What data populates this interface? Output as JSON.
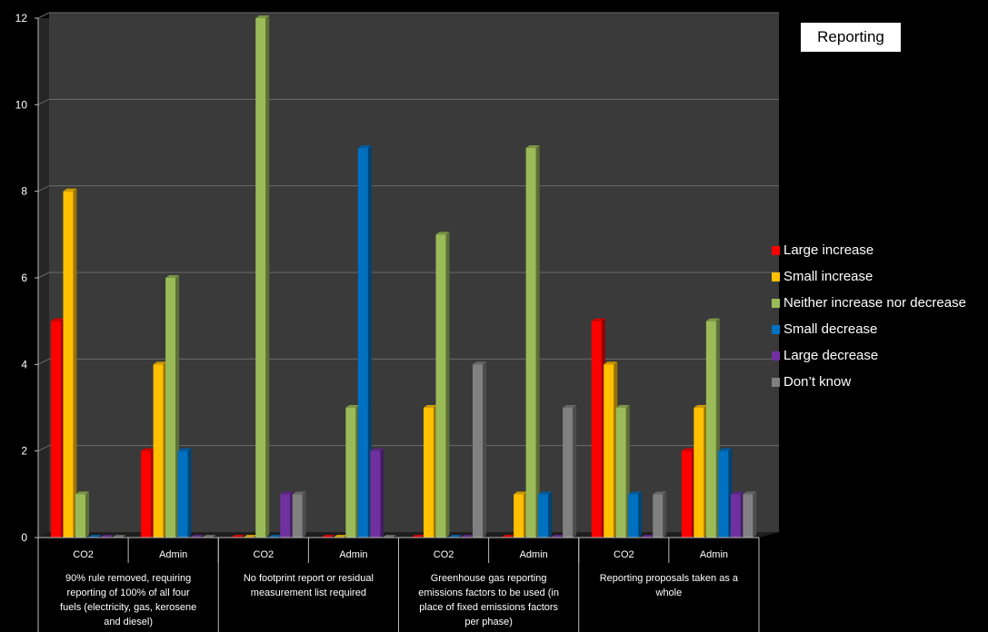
{
  "title": "Reporting",
  "chart_data": {
    "type": "bar",
    "title": "Reporting",
    "ylim": [
      0,
      12
    ],
    "yticks": [
      "0",
      "2",
      "4",
      "6",
      "8",
      "10",
      "12"
    ],
    "grid": true,
    "legend_position": "right",
    "groups": [
      {
        "label": "90% rule removed, requiring reporting of 100% of all four fuels (electricity, gas, kerosene and diesel)",
        "label_lines": [
          "90% rule removed, requiring",
          "reporting of 100% of all four",
          "fuels (electricity, gas, kerosene",
          "and diesel)"
        ],
        "categories": [
          "CO2",
          "Admin"
        ]
      },
      {
        "label": "No footprint report or residual measurement list required",
        "label_lines": [
          "No footprint report or residual",
          "measurement list required"
        ],
        "categories": [
          "CO2",
          "Admin"
        ]
      },
      {
        "label": "Greenhouse gas reporting emissions factors to be used (in place of fixed emissions factors per phase)",
        "label_lines": [
          "Greenhouse gas reporting",
          "emissions factors to be used (in",
          "place of fixed emissions factors",
          "per phase)"
        ],
        "categories": [
          "CO2",
          "Admin"
        ]
      },
      {
        "label": "Reporting proposals taken as a whole",
        "label_lines": [
          "Reporting proposals taken as a",
          "whole"
        ],
        "categories": [
          "CO2",
          "Admin"
        ]
      }
    ],
    "categories": [
      "CO2",
      "Admin",
      "CO2",
      "Admin",
      "CO2",
      "Admin",
      "CO2",
      "Admin"
    ],
    "series": [
      {
        "name": "Large increase",
        "color": "#ff0000",
        "values": [
          5,
          2,
          0,
          0,
          0,
          0,
          5,
          2
        ]
      },
      {
        "name": "Small increase",
        "color": "#ffc000",
        "values": [
          8,
          4,
          0,
          0,
          3,
          1,
          4,
          3
        ]
      },
      {
        "name": "Neither increase nor decrease",
        "color": "#9bbb59",
        "values": [
          1,
          6,
          12,
          3,
          7,
          9,
          3,
          5
        ]
      },
      {
        "name": "Small decrease",
        "color": "#0070c0",
        "values": [
          0,
          2,
          0,
          9,
          0,
          1,
          1,
          2
        ]
      },
      {
        "name": "Large decrease",
        "color": "#7030a0",
        "values": [
          0,
          0,
          1,
          2,
          0,
          0,
          0,
          1
        ]
      },
      {
        "name": "Don’t know",
        "color": "#808080",
        "values": [
          0,
          0,
          1,
          0,
          4,
          3,
          1,
          1
        ]
      }
    ]
  }
}
